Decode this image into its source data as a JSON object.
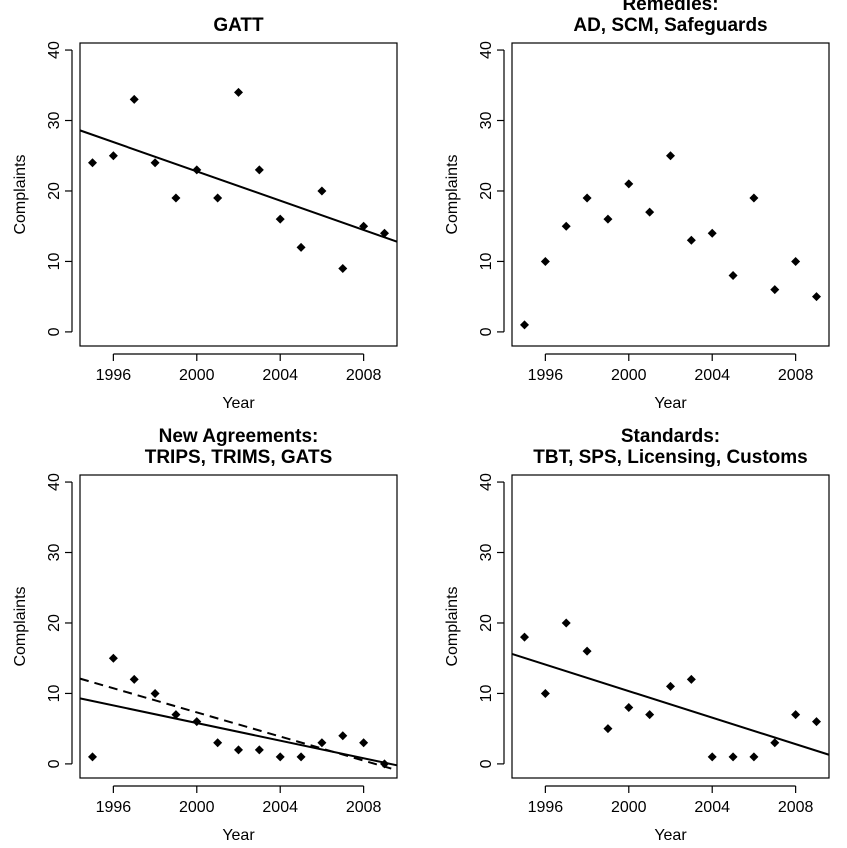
{
  "chart_data": [
    {
      "type": "scatter",
      "title": [
        "GATT"
      ],
      "xlabel": "Year",
      "ylabel": "Complaints",
      "xlim": [
        1994.4,
        2009.6
      ],
      "ylim": [
        -2,
        41
      ],
      "xticks": [
        1996,
        2000,
        2004,
        2008
      ],
      "yticks": [
        0,
        10,
        20,
        30,
        40
      ],
      "grid": false,
      "series": [
        {
          "x": [
            1995,
            1996,
            1997,
            1998,
            1999,
            2000,
            2001,
            2002,
            2003,
            2004,
            2005,
            2006,
            2007,
            2008,
            2009
          ],
          "y": [
            24,
            25,
            33,
            24,
            19,
            23,
            19,
            34,
            23,
            16,
            12,
            20,
            9,
            15,
            14
          ]
        }
      ],
      "fit_lines": [
        {
          "style": "solid",
          "x": [
            1994.4,
            2009.6
          ],
          "y": [
            28.6,
            12.8
          ]
        }
      ]
    },
    {
      "type": "scatter",
      "title": [
        "Remedies:",
        "AD, SCM, Safeguards"
      ],
      "xlabel": "Year",
      "ylabel": "Complaints",
      "xlim": [
        1994.4,
        2009.6
      ],
      "ylim": [
        -2,
        41
      ],
      "xticks": [
        1996,
        2000,
        2004,
        2008
      ],
      "yticks": [
        0,
        10,
        20,
        30,
        40
      ],
      "grid": false,
      "series": [
        {
          "x": [
            1995,
            1996,
            1997,
            1998,
            1999,
            2000,
            2001,
            2002,
            2003,
            2004,
            2005,
            2006,
            2007,
            2008,
            2009
          ],
          "y": [
            1,
            10,
            15,
            19,
            16,
            21,
            17,
            25,
            13,
            14,
            8,
            19,
            6,
            10,
            5
          ]
        }
      ],
      "fit_lines": []
    },
    {
      "type": "scatter",
      "title": [
        "New Agreements:",
        "TRIPS, TRIMS, GATS"
      ],
      "xlabel": "Year",
      "ylabel": "Complaints",
      "xlim": [
        1994.4,
        2009.6
      ],
      "ylim": [
        -2,
        41
      ],
      "xticks": [
        1996,
        2000,
        2004,
        2008
      ],
      "yticks": [
        0,
        10,
        20,
        30,
        40
      ],
      "grid": false,
      "series": [
        {
          "x": [
            1995,
            1996,
            1997,
            1998,
            1999,
            2000,
            2001,
            2002,
            2003,
            2004,
            2005,
            2006,
            2007,
            2008,
            2009
          ],
          "y": [
            1,
            15,
            12,
            10,
            7,
            6,
            3,
            2,
            2,
            1,
            1,
            3,
            4,
            3,
            0
          ]
        }
      ],
      "fit_lines": [
        {
          "style": "solid",
          "x": [
            1994.4,
            2009.6
          ],
          "y": [
            9.3,
            -0.2
          ]
        },
        {
          "style": "dashed",
          "x": [
            1994.4,
            2009.6
          ],
          "y": [
            12.1,
            -0.9
          ]
        }
      ]
    },
    {
      "type": "scatter",
      "title": [
        "Standards:",
        "TBT, SPS, Licensing, Customs"
      ],
      "xlabel": "Year",
      "ylabel": "Complaints",
      "xlim": [
        1994.4,
        2009.6
      ],
      "ylim": [
        -2,
        41
      ],
      "xticks": [
        1996,
        2000,
        2004,
        2008
      ],
      "yticks": [
        0,
        10,
        20,
        30,
        40
      ],
      "grid": false,
      "series": [
        {
          "x": [
            1995,
            1996,
            1997,
            1998,
            1999,
            2000,
            2001,
            2002,
            2003,
            2004,
            2005,
            2006,
            2007,
            2008,
            2009
          ],
          "y": [
            18,
            10,
            20,
            16,
            5,
            8,
            7,
            11,
            12,
            1,
            1,
            1,
            3,
            7,
            6
          ]
        }
      ],
      "fit_lines": [
        {
          "style": "solid",
          "x": [
            1994.4,
            2009.6
          ],
          "y": [
            15.6,
            1.3
          ]
        }
      ]
    }
  ]
}
